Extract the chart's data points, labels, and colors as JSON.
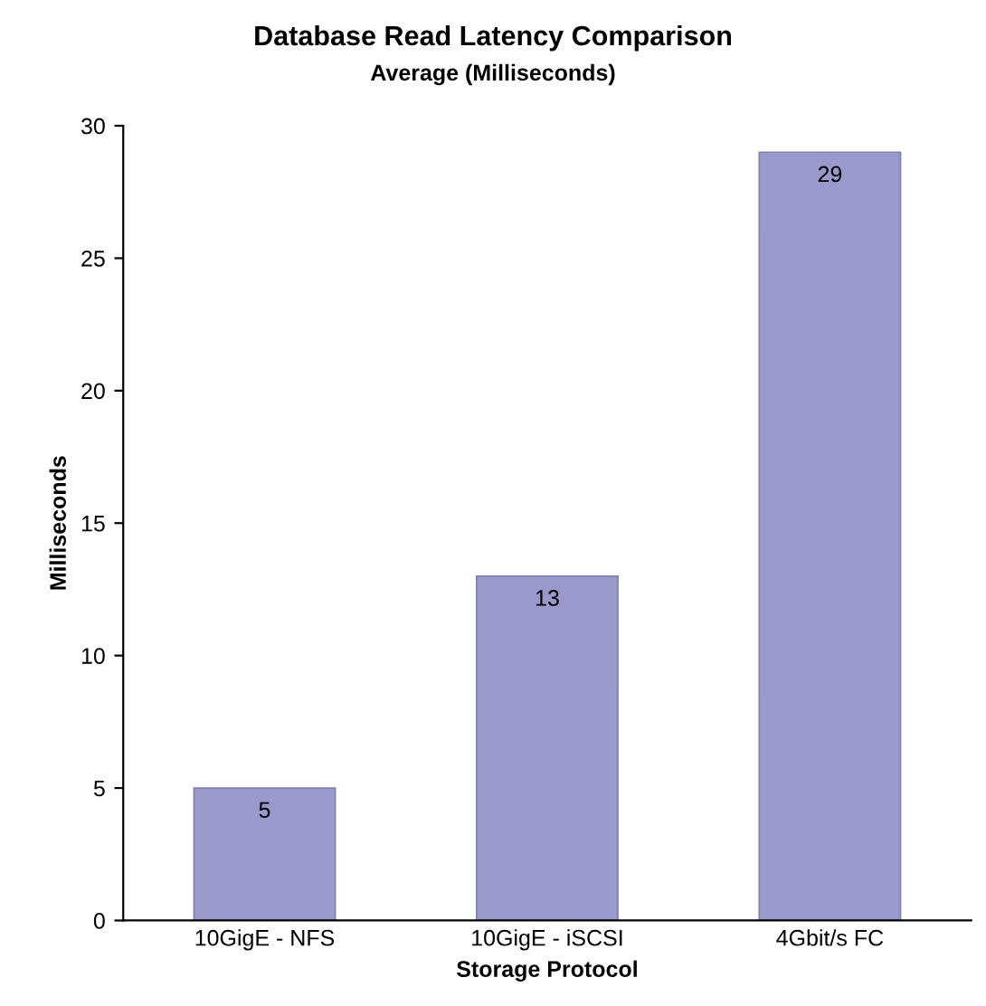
{
  "chart_data": {
    "type": "bar",
    "title": "Database Read Latency Comparison",
    "subtitle": "Average (Milliseconds)",
    "xlabel": "Storage Protocol",
    "ylabel": "Milliseconds",
    "categories": [
      "10GigE - NFS",
      "10GigE - iSCSI",
      "4Gbit/s FC"
    ],
    "values": [
      5,
      13,
      29
    ],
    "color": "#9999cc",
    "ylim": [
      0,
      30
    ],
    "yticks": [
      0,
      5,
      10,
      15,
      20,
      25,
      30
    ],
    "grid": false,
    "data_labels": true
  }
}
